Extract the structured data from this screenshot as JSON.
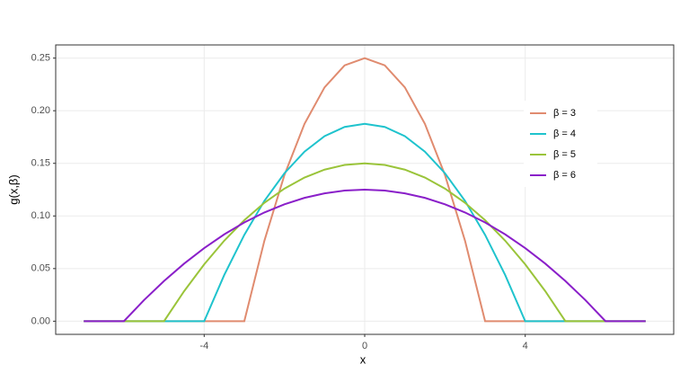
{
  "chart_data": {
    "type": "line",
    "x_label": "x",
    "y_label": "g(x,β)",
    "x": [
      -7,
      -6.5,
      -6,
      -5.5,
      -5,
      -4.5,
      -4,
      -3.5,
      -3,
      -2.5,
      -2,
      -1.5,
      -1,
      -0.5,
      0,
      0.5,
      1,
      1.5,
      2,
      2.5,
      3,
      3.5,
      4,
      4.5,
      5,
      5.5,
      6,
      6.5,
      7
    ],
    "series": [
      {
        "name": "β = 3",
        "color": "#e08b6f",
        "values": [
          0,
          0,
          0,
          0,
          0,
          0,
          0,
          0,
          0,
          0.0764,
          0.1389,
          0.1875,
          0.2222,
          0.2431,
          0.25,
          0.2431,
          0.2222,
          0.1875,
          0.1389,
          0.0764,
          0,
          0,
          0,
          0,
          0,
          0,
          0,
          0,
          0
        ]
      },
      {
        "name": "β = 4",
        "color": "#1fc3cd",
        "values": [
          0,
          0,
          0,
          0,
          0,
          0,
          0,
          0.0439,
          0.082,
          0.1143,
          0.1406,
          0.1611,
          0.1758,
          0.1846,
          0.1875,
          0.1846,
          0.1758,
          0.1611,
          0.1406,
          0.1143,
          0.082,
          0.0439,
          0,
          0,
          0,
          0,
          0,
          0,
          0
        ]
      },
      {
        "name": "β = 5",
        "color": "#9ac43a",
        "values": [
          0,
          0,
          0,
          0,
          0,
          0.0285,
          0.054,
          0.0765,
          0.096,
          0.1125,
          0.126,
          0.1365,
          0.144,
          0.1485,
          0.15,
          0.1485,
          0.144,
          0.1365,
          0.126,
          0.1125,
          0.096,
          0.0765,
          0.054,
          0.0285,
          0,
          0,
          0,
          0,
          0
        ]
      },
      {
        "name": "β = 6",
        "color": "#8a1fc9",
        "values": [
          0,
          0,
          0,
          0.02,
          0.0382,
          0.0547,
          0.0694,
          0.0825,
          0.0938,
          0.1033,
          0.1111,
          0.1172,
          0.1215,
          0.1241,
          0.125,
          0.1241,
          0.1215,
          0.1172,
          0.1111,
          0.1033,
          0.0938,
          0.0825,
          0.0694,
          0.0547,
          0.0382,
          0.02,
          0,
          0,
          0
        ]
      }
    ],
    "xlim": [
      -7.7,
      7.7
    ],
    "xticks": [
      -4,
      0,
      4
    ],
    "ylim": [
      -0.0125,
      0.2625
    ],
    "yticks": [
      {
        "value": 0,
        "label": "0.00"
      },
      {
        "value": 0.05,
        "label": "0.05"
      },
      {
        "value": 0.1,
        "label": "0.10"
      },
      {
        "value": 0.15,
        "label": "0.15"
      },
      {
        "value": 0.2,
        "label": "0.20"
      },
      {
        "value": 0.25,
        "label": "0.25"
      }
    ],
    "grid": true
  }
}
